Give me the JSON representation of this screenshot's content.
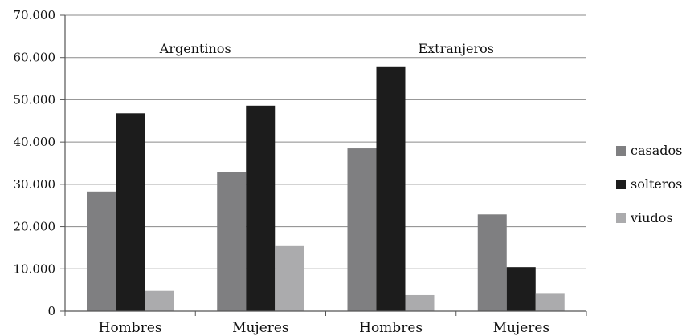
{
  "chart_data": {
    "type": "bar",
    "groups": [
      "Argentinos",
      "Extranjeros"
    ],
    "categories": [
      "Hombres",
      "Mujeres",
      "Hombres",
      "Mujeres"
    ],
    "series": [
      {
        "name": "casados",
        "color": "#7f7f81",
        "values": [
          28300,
          33000,
          38500,
          22900
        ]
      },
      {
        "name": "solteros",
        "color": "#1c1c1c",
        "values": [
          46800,
          48600,
          57900,
          10400
        ]
      },
      {
        "name": "viudos",
        "color": "#ababad",
        "values": [
          4800,
          15400,
          3800,
          4100
        ]
      }
    ],
    "y_ticks": [
      "0",
      "10.000",
      "20.000",
      "30.000",
      "40.000",
      "50.000",
      "60.000",
      "70.000"
    ],
    "ylim": [
      0,
      70000
    ],
    "grid": true,
    "legend_position": "right"
  }
}
